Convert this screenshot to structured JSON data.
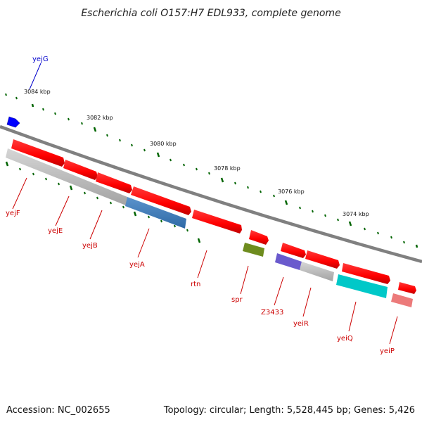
{
  "title": "Escherichia coli O157:H7 EDL933, complete genome",
  "footer": {
    "accession": "Accession: NC_002655",
    "topology": "Topology: circular; Length: 5,528,445 bp; Genes: 5,426"
  },
  "ruler": {
    "labels": [
      "3084 kbp",
      "3082 kbp",
      "3080 kbp",
      "3078 kbp",
      "3076 kbp",
      "3074 kbp"
    ]
  },
  "genes": [
    {
      "name": "yejG",
      "color": "#0000cc"
    },
    {
      "name": "yejF",
      "color": "#cc0000"
    },
    {
      "name": "yejE",
      "color": "#cc0000"
    },
    {
      "name": "yejB",
      "color": "#cc0000"
    },
    {
      "name": "yejA",
      "color": "#cc0000"
    },
    {
      "name": "rtn",
      "color": "#cc0000"
    },
    {
      "name": "spr",
      "color": "#cc0000"
    },
    {
      "name": "Z3433",
      "color": "#cc0000"
    },
    {
      "name": "yeiR",
      "color": "#cc0000"
    },
    {
      "name": "yeiQ",
      "color": "#cc0000"
    },
    {
      "name": "yeiP",
      "color": "#cc0000"
    }
  ],
  "colors": {
    "cds": "#ff0000",
    "homolog_gray": "#b0b0b0",
    "homolog_steelblue": "#3f7db8",
    "homolog_olive": "#6e8c1e",
    "homolog_purple": "#6a5acd",
    "homolog_cyan": "#00c8c8",
    "homolog_pink": "#ec7a7a",
    "forward_gene": "#0000ff",
    "backbone": "#808080",
    "ticks": "#006400"
  }
}
